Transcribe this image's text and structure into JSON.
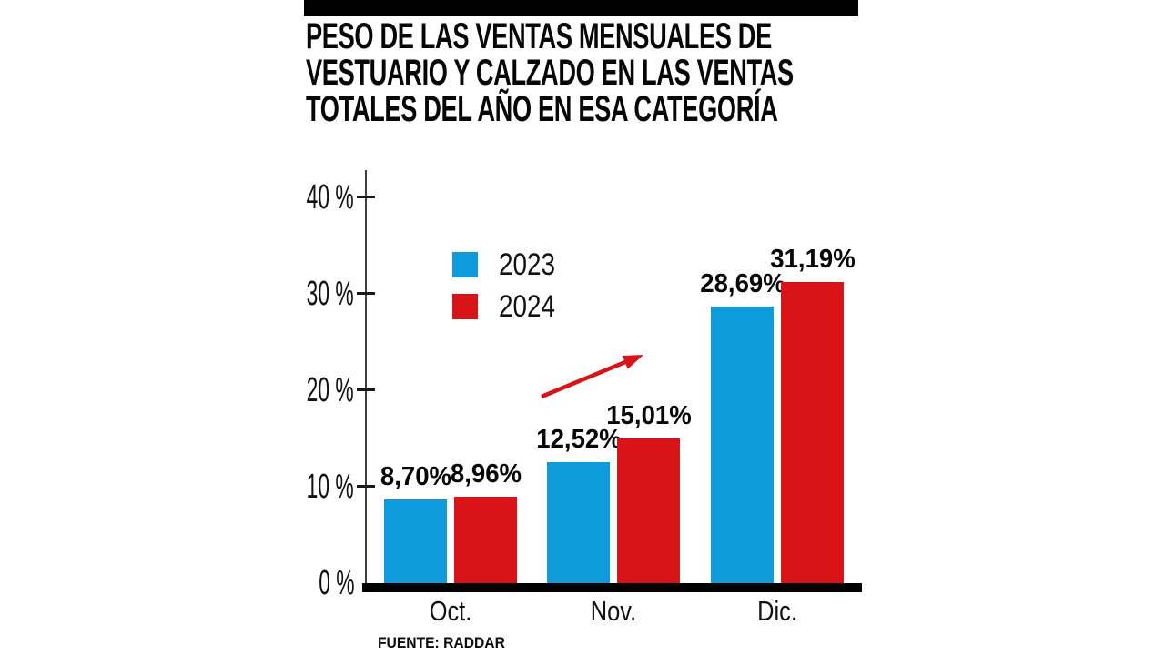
{
  "page": {
    "background": "#ffffff"
  },
  "header": {
    "top_bar_color": "#000000",
    "title_lines": [
      "PESO DE LAS VENTAS MENSUALES DE",
      "VESTUARIO Y CALZADO EN LAS VENTAS",
      "TOTALES DEL AÑO EN ESA CATEGORÍA"
    ]
  },
  "legend": {
    "items": [
      {
        "label": "2023",
        "color": "#0D9BDB"
      },
      {
        "label": "2024",
        "color": "#D91419"
      }
    ]
  },
  "source": {
    "label": "FUENTE: RADDAR"
  },
  "chart_data": {
    "type": "bar",
    "title": "Peso de las ventas mensuales de vestuario y calzado en las ventas totales del año en esa categoría",
    "categories": [
      "Oct.",
      "Nov.",
      "Dic."
    ],
    "series": [
      {
        "name": "2023",
        "color": "#0D9BDB",
        "values": [
          8.7,
          12.52,
          28.69
        ],
        "value_labels": [
          "8,70%",
          "12,52%",
          "28,69%"
        ]
      },
      {
        "name": "2024",
        "color": "#D91419",
        "values": [
          8.96,
          15.01,
          31.19
        ],
        "value_labels": [
          "8,96%",
          "15,01%",
          "31,19%"
        ]
      }
    ],
    "xlabel": "",
    "ylabel": "",
    "ylim": [
      0,
      43
    ],
    "y_ticks": [
      {
        "value": 0,
        "label": "0 %"
      },
      {
        "value": 10,
        "label": "10 %"
      },
      {
        "value": 20,
        "label": "20 %"
      },
      {
        "value": 30,
        "label": "30 %"
      },
      {
        "value": 40,
        "label": "40 %"
      }
    ],
    "grid": false,
    "legend_position": "inside-top-left",
    "annotation": {
      "type": "trend-arrow-up",
      "color": "#D91419",
      "description": "red arrow pointing up and to the right, between the Nov. and Dic. bar groups"
    }
  }
}
